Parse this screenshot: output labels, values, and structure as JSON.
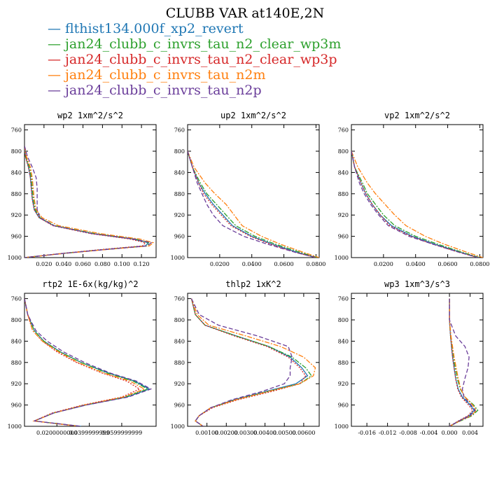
{
  "figure": {
    "title": "CLUBB VAR at140E,2N",
    "legend": [
      {
        "label": "flthist134.000f_xp2_revert",
        "color": "#1f77b4",
        "dash": "solid"
      },
      {
        "label": "jan24_clubb_c_invrs_tau_n2_clear_wp3m",
        "color": "#2ca02c",
        "dash": "dashdot"
      },
      {
        "label": "jan24_clubb_c_invrs_tau_n2_clear_wp3p",
        "color": "#d62728",
        "dash": "dot"
      },
      {
        "label": "jan24_clubb_c_invrs_tau_n2m",
        "color": "#ff7f0e",
        "dash": "dashdot"
      },
      {
        "label": "jan24_clubb_c_invrs_tau_n2p",
        "color": "#6a3d9a",
        "dash": "dash"
      }
    ]
  },
  "chart_data": [
    {
      "type": "line",
      "title": "wp2   1xm^2/s^2",
      "ylim": [
        1000,
        750
      ],
      "y_ticks": [
        760,
        800,
        840,
        880,
        920,
        960,
        1000
      ],
      "xlim": [
        0.0,
        0.135
      ],
      "x_ticks": [
        0.02,
        0.04,
        0.06,
        0.08,
        0.1,
        0.12
      ],
      "x_tick_labels": [
        "0.020",
        "0.040",
        "0.060",
        "0.080",
        "0.100",
        "0.120"
      ],
      "y": [
        790,
        810,
        830,
        850,
        870,
        890,
        910,
        925,
        940,
        955,
        965,
        972,
        978,
        985,
        992,
        1000
      ],
      "series": [
        {
          "values": [
            0.0,
            0.001,
            0.004,
            0.006,
            0.007,
            0.008,
            0.01,
            0.015,
            0.03,
            0.07,
            0.11,
            0.127,
            0.124,
            0.08,
            0.04,
            0.0
          ]
        },
        {
          "values": [
            0.0,
            0.001,
            0.005,
            0.007,
            0.008,
            0.009,
            0.011,
            0.016,
            0.031,
            0.072,
            0.113,
            0.128,
            0.125,
            0.081,
            0.041,
            0.0
          ]
        },
        {
          "values": [
            0.0,
            0.001,
            0.004,
            0.006,
            0.007,
            0.008,
            0.01,
            0.015,
            0.029,
            0.068,
            0.108,
            0.124,
            0.121,
            0.078,
            0.039,
            0.0
          ]
        },
        {
          "values": [
            0.0,
            0.002,
            0.006,
            0.008,
            0.009,
            0.01,
            0.012,
            0.018,
            0.035,
            0.078,
            0.118,
            0.132,
            0.128,
            0.083,
            0.042,
            0.0
          ]
        },
        {
          "values": [
            0.0,
            0.003,
            0.008,
            0.012,
            0.013,
            0.013,
            0.013,
            0.016,
            0.03,
            0.07,
            0.112,
            0.13,
            0.126,
            0.082,
            0.041,
            0.0
          ]
        }
      ]
    },
    {
      "type": "line",
      "title": "up2   1xm^2/s^2",
      "ylim": [
        1000,
        750
      ],
      "y_ticks": [
        760,
        800,
        840,
        880,
        920,
        960,
        1000
      ],
      "xlim": [
        0.0,
        0.082
      ],
      "x_ticks": [
        0.02,
        0.04,
        0.06,
        0.08
      ],
      "x_tick_labels": [
        "0.0200",
        "0.0400",
        "0.0600",
        "0.0800"
      ],
      "y": [
        800,
        830,
        860,
        880,
        900,
        920,
        940,
        960,
        975,
        990,
        1000
      ],
      "series": [
        {
          "values": [
            0.0,
            0.003,
            0.007,
            0.011,
            0.016,
            0.022,
            0.028,
            0.04,
            0.053,
            0.068,
            0.08
          ]
        },
        {
          "values": [
            0.0,
            0.003,
            0.008,
            0.012,
            0.018,
            0.024,
            0.03,
            0.042,
            0.055,
            0.07,
            0.081
          ]
        },
        {
          "values": [
            0.0,
            0.003,
            0.007,
            0.01,
            0.015,
            0.021,
            0.027,
            0.039,
            0.052,
            0.067,
            0.08
          ]
        },
        {
          "values": [
            0.0,
            0.004,
            0.011,
            0.017,
            0.024,
            0.029,
            0.034,
            0.046,
            0.058,
            0.072,
            0.082
          ]
        },
        {
          "values": [
            0.0,
            0.003,
            0.006,
            0.009,
            0.012,
            0.016,
            0.022,
            0.035,
            0.05,
            0.067,
            0.08
          ]
        }
      ]
    },
    {
      "type": "line",
      "title": "vp2   1xm^2/s^2",
      "ylim": [
        1000,
        750
      ],
      "y_ticks": [
        760,
        800,
        840,
        880,
        920,
        960,
        1000
      ],
      "xlim": [
        0.0,
        0.082
      ],
      "x_ticks": [
        0.02,
        0.04,
        0.06,
        0.08
      ],
      "x_tick_labels": [
        "0.0200",
        "0.0400",
        "0.0600",
        "0.0800"
      ],
      "y": [
        800,
        830,
        860,
        880,
        900,
        920,
        940,
        960,
        975,
        990,
        1000
      ],
      "series": [
        {
          "values": [
            0.0,
            0.002,
            0.006,
            0.009,
            0.013,
            0.018,
            0.025,
            0.038,
            0.052,
            0.068,
            0.079
          ]
        },
        {
          "values": [
            0.0,
            0.002,
            0.007,
            0.01,
            0.015,
            0.02,
            0.027,
            0.04,
            0.054,
            0.069,
            0.08
          ]
        },
        {
          "values": [
            0.0,
            0.002,
            0.006,
            0.009,
            0.013,
            0.018,
            0.024,
            0.037,
            0.051,
            0.067,
            0.079
          ]
        },
        {
          "values": [
            0.0,
            0.004,
            0.01,
            0.015,
            0.021,
            0.027,
            0.034,
            0.046,
            0.058,
            0.072,
            0.082
          ]
        },
        {
          "values": [
            0.0,
            0.002,
            0.005,
            0.008,
            0.012,
            0.017,
            0.023,
            0.036,
            0.051,
            0.067,
            0.079
          ]
        }
      ]
    },
    {
      "type": "line",
      "title": "rtp2   1E-6x(kg/kg)^2",
      "ylim": [
        1000,
        750
      ],
      "y_ticks": [
        760,
        800,
        840,
        880,
        920,
        960,
        1000
      ],
      "xlim": [
        0.0,
        0.0812
      ],
      "x_ticks": [
        0.02,
        0.04,
        0.06
      ],
      "x_tick_labels": [
        "0.0200000000",
        "0.0399999999",
        "0.0599999999"
      ],
      "y": [
        760,
        790,
        820,
        840,
        860,
        880,
        900,
        915,
        930,
        945,
        960,
        975,
        990,
        1000
      ],
      "series": [
        {
          "values": [
            0.0,
            0.002,
            0.006,
            0.012,
            0.022,
            0.035,
            0.052,
            0.068,
            0.077,
            0.063,
            0.038,
            0.018,
            0.006,
            0.035
          ]
        },
        {
          "values": [
            0.0,
            0.002,
            0.006,
            0.012,
            0.022,
            0.035,
            0.051,
            0.067,
            0.076,
            0.062,
            0.037,
            0.018,
            0.006,
            0.034
          ]
        },
        {
          "values": [
            0.0,
            0.002,
            0.005,
            0.011,
            0.02,
            0.032,
            0.048,
            0.063,
            0.071,
            0.06,
            0.036,
            0.017,
            0.006,
            0.033
          ]
        },
        {
          "values": [
            0.0,
            0.002,
            0.005,
            0.011,
            0.021,
            0.033,
            0.049,
            0.065,
            0.074,
            0.061,
            0.037,
            0.018,
            0.006,
            0.034
          ]
        },
        {
          "values": [
            0.0,
            0.002,
            0.007,
            0.014,
            0.024,
            0.037,
            0.053,
            0.069,
            0.078,
            0.064,
            0.038,
            0.018,
            0.006,
            0.035
          ]
        }
      ]
    },
    {
      "type": "line",
      "title": "thlp2   1xK^2",
      "ylim": [
        1000,
        750
      ],
      "y_ticks": [
        760,
        800,
        840,
        880,
        920,
        960,
        1000
      ],
      "xlim": [
        0.0,
        0.0068
      ],
      "x_ticks": [
        0.001,
        0.002,
        0.003,
        0.004,
        0.005,
        0.006
      ],
      "x_tick_labels": [
        "0.00100",
        "0.00200",
        "0.00300",
        "0.00400",
        "0.00500",
        "0.00600"
      ],
      "y": [
        760,
        790,
        810,
        830,
        850,
        870,
        890,
        905,
        920,
        935,
        950,
        965,
        980,
        990,
        1000
      ],
      "series": [
        {
          "values": [
            0.0002,
            0.0004,
            0.0009,
            0.0025,
            0.0042,
            0.0053,
            0.0059,
            0.0062,
            0.0056,
            0.004,
            0.0024,
            0.0012,
            0.0006,
            0.0004,
            0.0008
          ]
        },
        {
          "values": [
            0.0002,
            0.0004,
            0.0009,
            0.0025,
            0.0042,
            0.0054,
            0.0061,
            0.0064,
            0.0058,
            0.0041,
            0.0025,
            0.0012,
            0.0006,
            0.0004,
            0.0008
          ]
        },
        {
          "values": [
            0.0002,
            0.0004,
            0.0009,
            0.0024,
            0.0041,
            0.0052,
            0.0058,
            0.0061,
            0.0058,
            0.0043,
            0.0026,
            0.0013,
            0.0006,
            0.0004,
            0.0008
          ]
        },
        {
          "values": [
            0.0002,
            0.0005,
            0.0011,
            0.003,
            0.0048,
            0.006,
            0.0066,
            0.0065,
            0.0058,
            0.0041,
            0.0025,
            0.0012,
            0.0006,
            0.0004,
            0.0008
          ]
        },
        {
          "values": [
            0.0002,
            0.0006,
            0.0016,
            0.0036,
            0.0052,
            0.0054,
            0.0053,
            0.0053,
            0.005,
            0.0038,
            0.0023,
            0.0012,
            0.0006,
            0.0004,
            0.0008
          ]
        }
      ]
    },
    {
      "type": "line",
      "title": "wp3   1xm^3/s^3",
      "ylim": [
        1000,
        750
      ],
      "y_ticks": [
        760,
        800,
        840,
        880,
        920,
        960,
        1000
      ],
      "xlim": [
        -0.019,
        0.0065
      ],
      "x_ticks": [
        -0.016,
        -0.012,
        -0.008,
        -0.004,
        0.0,
        0.004
      ],
      "x_tick_labels": [
        "-0.016",
        "-0.012",
        "-0.008",
        "-0.004",
        "0.000",
        "0.004"
      ],
      "y": [
        760,
        800,
        830,
        850,
        870,
        890,
        910,
        930,
        945,
        960,
        970,
        980,
        990,
        1000
      ],
      "series": [
        {
          "values": [
            0.0,
            0.0,
            0.0002,
            0.0004,
            0.0006,
            0.0009,
            0.0012,
            0.0017,
            0.0025,
            0.004,
            0.0048,
            0.0038,
            0.0018,
            0.0
          ]
        },
        {
          "values": [
            0.0,
            0.0,
            0.0002,
            0.0005,
            0.0008,
            0.0011,
            0.0015,
            0.0021,
            0.003,
            0.0047,
            0.0055,
            0.0044,
            0.0021,
            0.0
          ]
        },
        {
          "values": [
            0.0,
            0.0,
            0.0002,
            0.0004,
            0.0006,
            0.0009,
            0.0012,
            0.0016,
            0.0023,
            0.0037,
            0.0045,
            0.0036,
            0.0017,
            0.0
          ]
        },
        {
          "values": [
            0.0,
            0.0,
            0.0003,
            0.0006,
            0.0009,
            0.0013,
            0.0017,
            0.0022,
            0.003,
            0.0045,
            0.0052,
            0.0042,
            0.002,
            0.0
          ]
        },
        {
          "values": [
            0.0,
            0.0,
            0.0012,
            0.003,
            0.0038,
            0.0036,
            0.003,
            0.0025,
            0.0028,
            0.0042,
            0.005,
            0.004,
            0.0019,
            0.0
          ]
        }
      ]
    }
  ]
}
